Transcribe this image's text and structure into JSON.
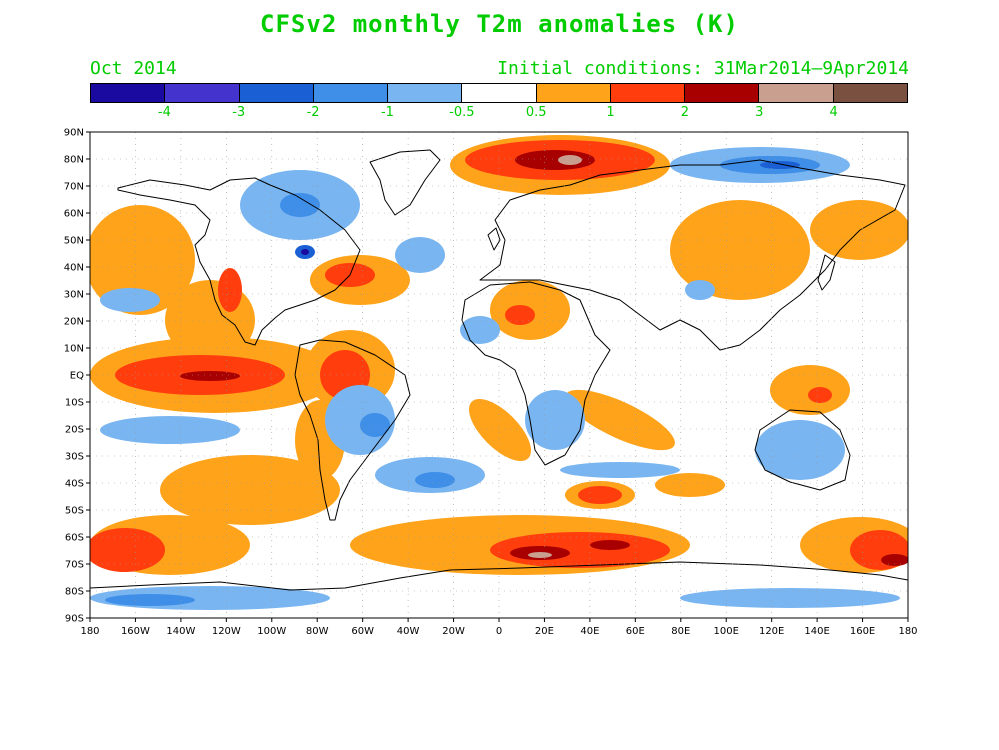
{
  "title": "CFSv2 monthly T2m anomalies (K)",
  "valid_month": "Oct 2014",
  "init_conditions": "Initial conditions: 31Mar2014–9Apr2014",
  "colorbar": {
    "colors": [
      "#1a0aa0",
      "#4433cc",
      "#1a5fd4",
      "#3f8ee8",
      "#79b5f0",
      "#ffffff",
      "#ffa31a",
      "#ff3d0d",
      "#a80000",
      "#c9a08f",
      "#7a5040"
    ],
    "labels": [
      "-4",
      "-3",
      "-2",
      "-1",
      "-0.5",
      "0.5",
      "1",
      "2",
      "3",
      "4"
    ]
  },
  "map": {
    "projection": "equirectangular",
    "lat_labels": [
      "90N",
      "80N",
      "70N",
      "60N",
      "50N",
      "40N",
      "30N",
      "20N",
      "10N",
      "EQ",
      "10S",
      "20S",
      "30S",
      "40S",
      "50S",
      "60S",
      "70S",
      "80S",
      "90S"
    ],
    "lon_labels": [
      "180",
      "160W",
      "140W",
      "120W",
      "100W",
      "80W",
      "60W",
      "40W",
      "20W",
      "0",
      "20E",
      "40E",
      "60E",
      "80E",
      "100E",
      "120E",
      "140E",
      "160E",
      "180"
    ]
  }
}
